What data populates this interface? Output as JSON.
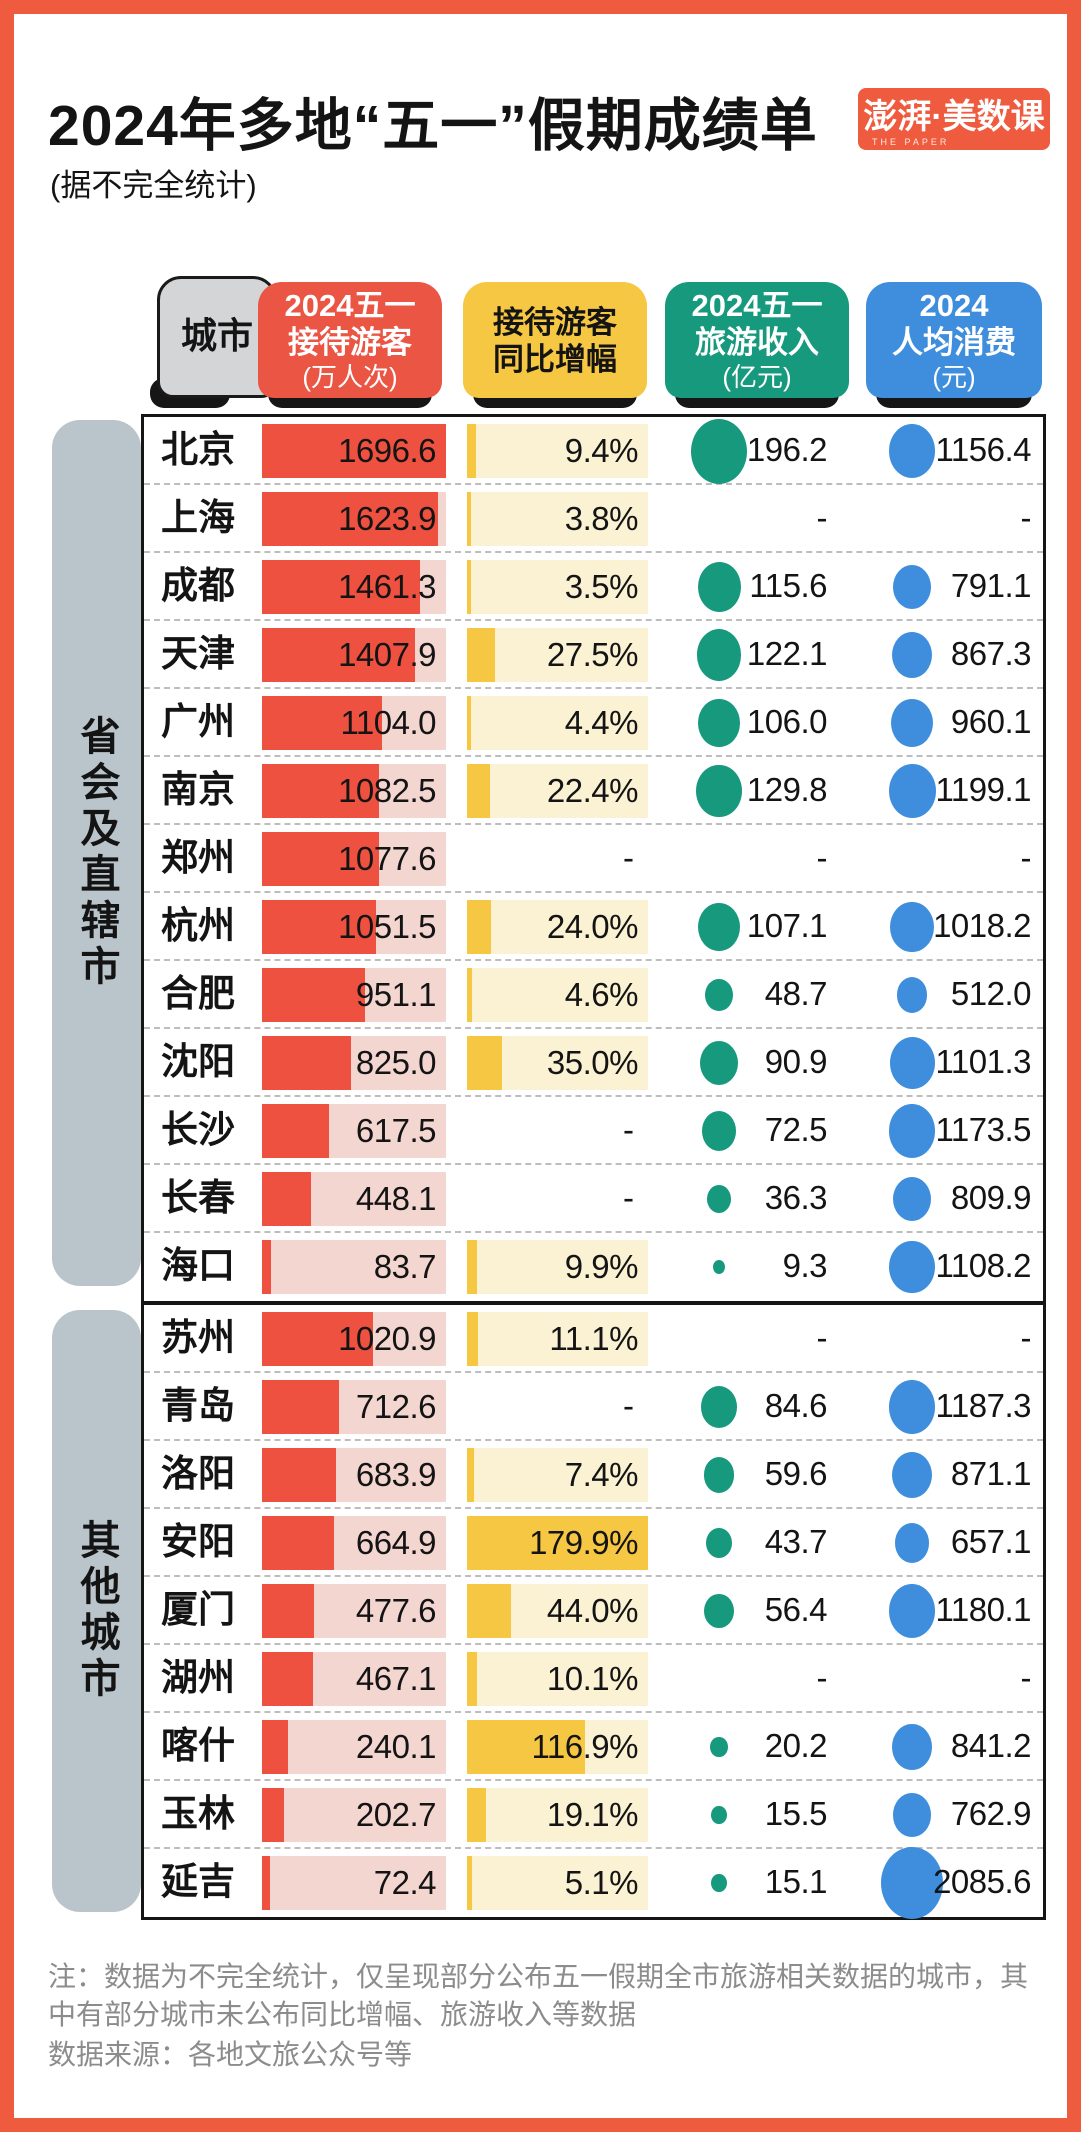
{
  "header": {
    "title": "2024年多地“五一”假期成绩单",
    "subtitle": "(据不完全统计)",
    "logo_text": "澎湃·美数课",
    "logo_sub": "THE PAPER"
  },
  "column_headers": {
    "city": "城市",
    "visitors": {
      "l1": "2024五一",
      "l2": "接待游客",
      "unit": "(万人次)"
    },
    "growth": {
      "l1": "接待游客",
      "l2": "同比增幅"
    },
    "revenue": {
      "l1": "2024五一",
      "l2": "旅游收入",
      "unit": "(亿元)"
    },
    "spend": {
      "l1": "2024",
      "l2": "人均消费",
      "unit": "(元)"
    }
  },
  "no_data": "-",
  "colors": {
    "frame": "#ee5b3e",
    "red_chip": "#ea5544",
    "red": "#ee5140",
    "red_track": "#f4d6d1",
    "yellow": "#f6c743",
    "yellow_track": "#fbf1d3",
    "green": "#17997e",
    "blue": "#3f8edd",
    "chip_gray": "#d3d5d7",
    "bracket": "#b9c5cb"
  },
  "chart_data": {
    "type": "table",
    "title": "2024年多地“五一”假期成绩单",
    "subtitle": "(据不完全统计)",
    "columns": [
      "城市",
      "2024五一接待游客(万人次)",
      "接待游客同比增幅",
      "2024五一旅游收入(亿元)",
      "2024人均消费(元)"
    ],
    "scales": {
      "visitors_max": 1696.6,
      "growth_max_pct": 179.9,
      "revenue_max": 196.2,
      "spend_max": 2085.6
    },
    "groups": [
      {
        "label": "省会及直辖市",
        "rows": [
          {
            "city": "北京",
            "visitors": 1696.6,
            "growth_pct": 9.4,
            "revenue": 196.2,
            "spend": 1156.4
          },
          {
            "city": "上海",
            "visitors": 1623.9,
            "growth_pct": 3.8,
            "revenue": null,
            "spend": null
          },
          {
            "city": "成都",
            "visitors": 1461.3,
            "growth_pct": 3.5,
            "revenue": 115.6,
            "spend": 791.1
          },
          {
            "city": "天津",
            "visitors": 1407.9,
            "growth_pct": 27.5,
            "revenue": 122.1,
            "spend": 867.3
          },
          {
            "city": "广州",
            "visitors": 1104.0,
            "growth_pct": 4.4,
            "revenue": 106.0,
            "spend": 960.1
          },
          {
            "city": "南京",
            "visitors": 1082.5,
            "growth_pct": 22.4,
            "revenue": 129.8,
            "spend": 1199.1
          },
          {
            "city": "郑州",
            "visitors": 1077.6,
            "growth_pct": null,
            "revenue": null,
            "spend": null
          },
          {
            "city": "杭州",
            "visitors": 1051.5,
            "growth_pct": 24.0,
            "revenue": 107.1,
            "spend": 1018.2
          },
          {
            "city": "合肥",
            "visitors": 951.1,
            "growth_pct": 4.6,
            "revenue": 48.7,
            "spend": 512.0
          },
          {
            "city": "沈阳",
            "visitors": 825.0,
            "growth_pct": 35.0,
            "revenue": 90.9,
            "spend": 1101.3
          },
          {
            "city": "长沙",
            "visitors": 617.5,
            "growth_pct": null,
            "revenue": 72.5,
            "spend": 1173.5
          },
          {
            "city": "长春",
            "visitors": 448.1,
            "growth_pct": null,
            "revenue": 36.3,
            "spend": 809.9
          },
          {
            "city": "海口",
            "visitors": 83.7,
            "growth_pct": 9.9,
            "revenue": 9.3,
            "spend": 1108.2
          }
        ]
      },
      {
        "label": "其他城市",
        "rows": [
          {
            "city": "苏州",
            "visitors": 1020.9,
            "growth_pct": 11.1,
            "revenue": null,
            "spend": null
          },
          {
            "city": "青岛",
            "visitors": 712.6,
            "growth_pct": null,
            "revenue": 84.6,
            "spend": 1187.3
          },
          {
            "city": "洛阳",
            "visitors": 683.9,
            "growth_pct": 7.4,
            "revenue": 59.6,
            "spend": 871.1
          },
          {
            "city": "安阳",
            "visitors": 664.9,
            "growth_pct": 179.9,
            "revenue": 43.7,
            "spend": 657.1
          },
          {
            "city": "厦门",
            "visitors": 477.6,
            "growth_pct": 44.0,
            "revenue": 56.4,
            "spend": 1180.1
          },
          {
            "city": "湖州",
            "visitors": 467.1,
            "growth_pct": 10.1,
            "revenue": null,
            "spend": null
          },
          {
            "city": "喀什",
            "visitors": 240.1,
            "growth_pct": 116.9,
            "revenue": 20.2,
            "spend": 841.2
          },
          {
            "city": "玉林",
            "visitors": 202.7,
            "growth_pct": 19.1,
            "revenue": 15.5,
            "spend": 762.9
          },
          {
            "city": "延吉",
            "visitors": 72.4,
            "growth_pct": 5.1,
            "revenue": 15.1,
            "spend": 2085.6
          }
        ]
      }
    ]
  },
  "notes": {
    "note": "注：数据为不完全统计，仅呈现部分公布五一假期全市旅游相关数据的城市，其中有部分城市未公布同比增幅、旅游收入等数据",
    "source": "数据来源：各地文旅公众号等"
  }
}
